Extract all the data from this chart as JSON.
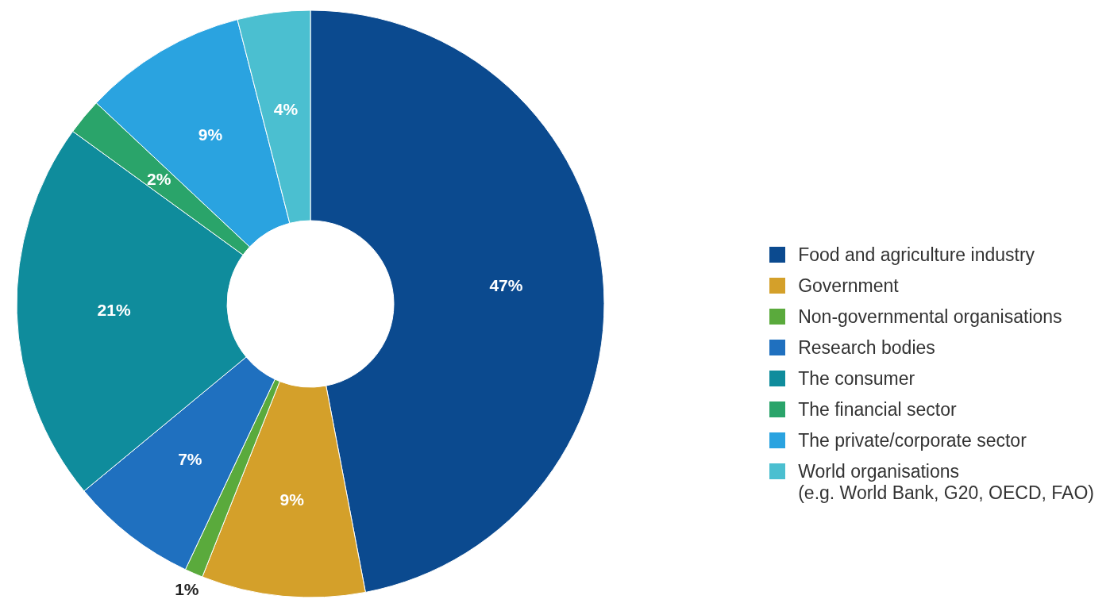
{
  "chart_data": {
    "type": "donut",
    "categories": [
      "Food and agriculture industry",
      "Government",
      "Non-governmental organisations",
      "Research bodies",
      "The consumer",
      "The financial sector",
      "The private/corporate sector",
      "World organisations\n(e.g. World Bank, G20, OECD, FAO)"
    ],
    "values": [
      47,
      9,
      1,
      7,
      21,
      2,
      9,
      4
    ],
    "value_labels": [
      "47%",
      "9%",
      "1%",
      "7%",
      "21%",
      "2%",
      "9%",
      "4%"
    ],
    "colors": [
      "#0b4a8f",
      "#d4a02a",
      "#5aaa3c",
      "#1f70bf",
      "#0f8c9c",
      "#2aa46a",
      "#2aa3e0",
      "#4bbfd0"
    ],
    "legend": "right"
  }
}
